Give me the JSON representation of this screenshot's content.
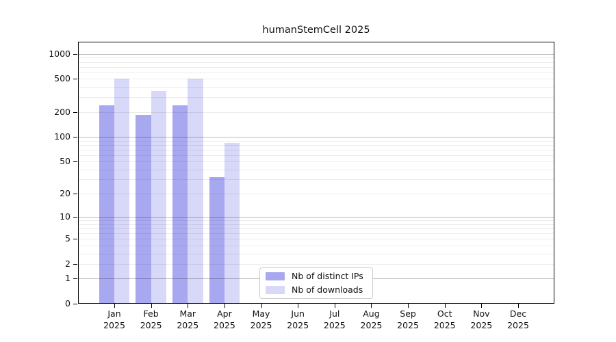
{
  "chart_data": {
    "type": "bar",
    "title": "humanStemCell 2025",
    "year_label": "2025",
    "categories": [
      "Jan",
      "Feb",
      "Mar",
      "Apr",
      "May",
      "Jun",
      "Jul",
      "Aug",
      "Sep",
      "Oct",
      "Nov",
      "Dec"
    ],
    "series": [
      {
        "name": "Nb of distinct IPs",
        "color": "#a8a8f0",
        "values": [
          240,
          185,
          240,
          32,
          0,
          0,
          0,
          0,
          0,
          0,
          0,
          0
        ]
      },
      {
        "name": "Nb of downloads",
        "color": "#d8d8f8",
        "values": [
          500,
          360,
          500,
          84,
          0,
          0,
          0,
          0,
          0,
          0,
          0,
          0
        ]
      }
    ],
    "yscale": "log1p",
    "ylim": [
      0,
      1400
    ],
    "ytick_values": [
      1000,
      500,
      200,
      100,
      50,
      20,
      10,
      5,
      2,
      1,
      0
    ],
    "grid": {
      "on": true,
      "minor_values": [
        2,
        3,
        4,
        5,
        6,
        7,
        8,
        9,
        20,
        30,
        40,
        50,
        60,
        70,
        80,
        90,
        200,
        300,
        400,
        500,
        600,
        700,
        800,
        900
      ],
      "major_values": [
        1,
        10,
        100,
        1000
      ],
      "minor_color": "rgba(0,0,0,0.075)",
      "major_color": "rgba(0,0,0,0.27)"
    },
    "legend": {
      "position": "bottom-center"
    },
    "axis_color": "#000000",
    "background_color": "#ffffff"
  }
}
